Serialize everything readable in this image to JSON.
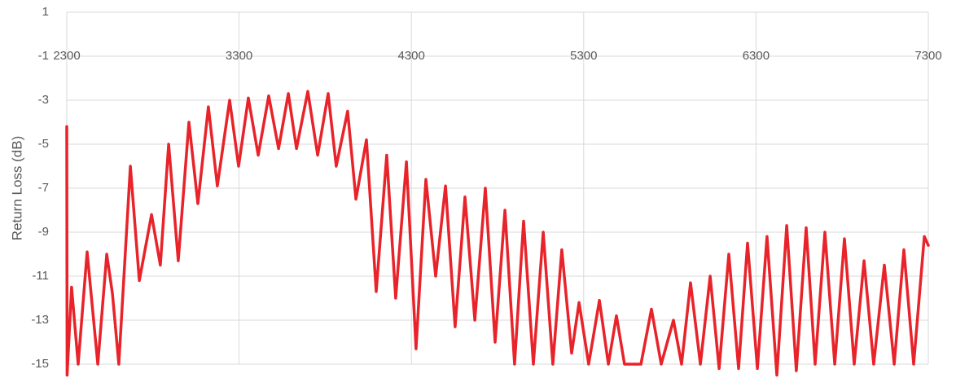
{
  "chart_data": {
    "type": "line",
    "y_label": "Return Loss (dB)",
    "x": [
      2300,
      2302,
      2328,
      2366,
      2418,
      2480,
      2532,
      2565,
      2602,
      2669,
      2721,
      2792,
      2843,
      2891,
      2947,
      3009,
      3061,
      3122,
      3174,
      3245,
      3297,
      3354,
      3411,
      3472,
      3529,
      3586,
      3633,
      3699,
      3756,
      3817,
      3864,
      3930,
      3978,
      4039,
      4096,
      4157,
      4209,
      4271,
      4327,
      4384,
      4441,
      4498,
      4554,
      4611,
      4668,
      4729,
      4786,
      4843,
      4899,
      4951,
      5008,
      5065,
      5121,
      5173,
      5230,
      5273,
      5329,
      5391,
      5443,
      5490,
      5537,
      5632,
      5693,
      5750,
      5821,
      5868,
      5920,
      5977,
      6034,
      6086,
      6142,
      6199,
      6251,
      6308,
      6364,
      6421,
      6478,
      6534,
      6591,
      6643,
      6700,
      6757,
      6813,
      6870,
      6927,
      6983,
      7045,
      7102,
      7158,
      7215,
      7277,
      7300
    ],
    "series": [
      {
        "name": "Return Loss",
        "color": "#e8232a",
        "values": [
          -4.2,
          -15.5,
          -11.5,
          -15,
          -9.9,
          -15,
          -10,
          -11.8,
          -15,
          -6,
          -11.2,
          -8.2,
          -10.5,
          -5,
          -10.3,
          -4,
          -7.7,
          -3.3,
          -6.9,
          -3,
          -6,
          -2.9,
          -5.5,
          -2.8,
          -5.2,
          -2.7,
          -5.2,
          -2.6,
          -5.5,
          -2.7,
          -6,
          -3.5,
          -7.5,
          -4.8,
          -11.7,
          -5.5,
          -12,
          -5.8,
          -14.3,
          -6.6,
          -11,
          -6.9,
          -13.3,
          -7.4,
          -13,
          -7,
          -14,
          -8,
          -15,
          -8.5,
          -15,
          -9,
          -15,
          -9.8,
          -14.5,
          -12.2,
          -15,
          -12.1,
          -15,
          -12.8,
          -15,
          -15,
          -12.5,
          -15,
          -13,
          -15,
          -11.3,
          -15,
          -11,
          -15.2,
          -10,
          -15.2,
          -9.5,
          -15.2,
          -9.2,
          -15.5,
          -8.7,
          -15.3,
          -8.8,
          -15,
          -9,
          -15,
          -9.3,
          -15,
          -10.3,
          -15,
          -10.5,
          -15,
          -9.8,
          -15,
          -9.2,
          -9.6
        ]
      }
    ],
    "xlim": [
      2300,
      7300
    ],
    "xticks": [
      2300,
      3300,
      4300,
      5300,
      6300,
      7300
    ],
    "ylim": [
      -15,
      1
    ],
    "yticks": [
      1,
      -1,
      -3,
      -5,
      -7,
      -9,
      -11,
      -13,
      -15
    ],
    "grid": true
  }
}
